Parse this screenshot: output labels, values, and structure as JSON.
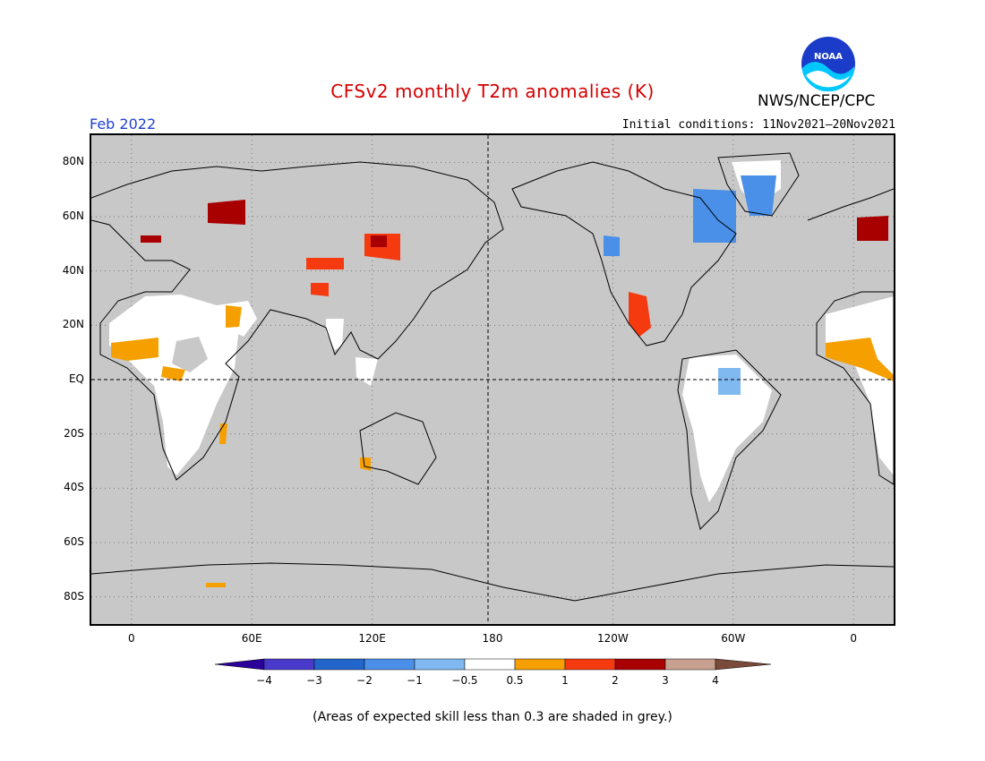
{
  "header": {
    "title": "CFSv2 monthly T2m anomalies (K)",
    "forecast_month": "Feb 2022",
    "initial_conditions": "Initial conditions: 11Nov2021–20Nov2021",
    "agency": "NWS/NCEP/CPC",
    "logo_text": "NOAA"
  },
  "map": {
    "projection": "equirectangular",
    "lon_range": [
      -20,
      380
    ],
    "lat_range": [
      -90,
      90
    ],
    "grid": true,
    "lat_ticks": [
      {
        "value": 80,
        "label": "80N"
      },
      {
        "value": 60,
        "label": "60N"
      },
      {
        "value": 40,
        "label": "40N"
      },
      {
        "value": 20,
        "label": "20N"
      },
      {
        "value": 0,
        "label": "EQ"
      },
      {
        "value": -20,
        "label": "20S"
      },
      {
        "value": -40,
        "label": "40S"
      },
      {
        "value": -60,
        "label": "60S"
      },
      {
        "value": -80,
        "label": "80S"
      }
    ],
    "lon_ticks": [
      {
        "value": 0,
        "label": "0"
      },
      {
        "value": 60,
        "label": "60E"
      },
      {
        "value": 120,
        "label": "120E"
      },
      {
        "value": 180,
        "label": "180"
      },
      {
        "value": 240,
        "label": "120W"
      },
      {
        "value": 300,
        "label": "60W"
      },
      {
        "value": 360,
        "label": "0"
      }
    ],
    "background_color": "#c8c8c8"
  },
  "colorbar": {
    "labels": [
      "−4",
      "−3",
      "−2",
      "−1",
      "−0.5",
      "0.5",
      "1",
      "2",
      "3",
      "4"
    ],
    "colors": [
      "#2a0099",
      "#4a3acc",
      "#2266cc",
      "#4a90e8",
      "#80b8f0",
      "#ffffff",
      "#f5a000",
      "#f53a10",
      "#a80000",
      "#c8a090",
      "#7a4a3a"
    ]
  },
  "footnote": "(Areas of expected skill less than 0.3 are shaded in grey.)"
}
